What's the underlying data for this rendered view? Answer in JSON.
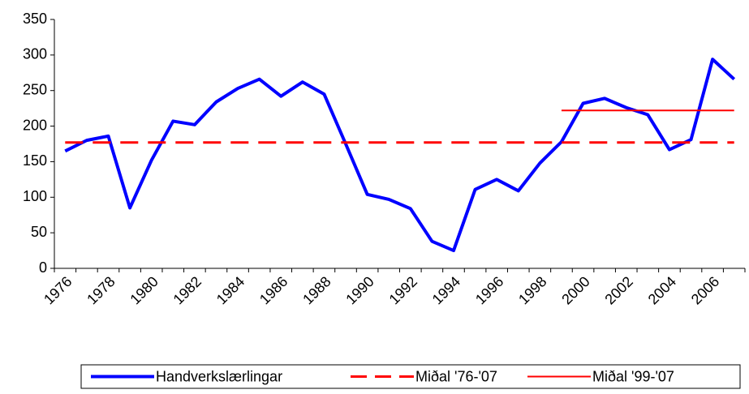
{
  "chart_data": {
    "type": "line",
    "categories": [
      "1976",
      null,
      "1978",
      null,
      "1980",
      null,
      "1982",
      null,
      "1984",
      null,
      "1986",
      null,
      "1988",
      null,
      "1990",
      null,
      "1992",
      null,
      "1994",
      null,
      "1996",
      null,
      "1998",
      null,
      "2000",
      null,
      "2002",
      null,
      "2004",
      null,
      "2006",
      null
    ],
    "series": [
      {
        "name": "Handverkslærlingar",
        "color": "#0000ff",
        "dash": "solid",
        "width": 4,
        "values": [
          165,
          180,
          186,
          85,
          152,
          207,
          202,
          234,
          253,
          266,
          242,
          262,
          245,
          175,
          104,
          97,
          84,
          38,
          25,
          111,
          125,
          109,
          148,
          178,
          232,
          239,
          226,
          216,
          167,
          181,
          294,
          266
        ]
      },
      {
        "name": "Miðal '76-'07",
        "color": "#ff0000",
        "dash": "dashed",
        "width": 3,
        "values": [
          177,
          177,
          177,
          177,
          177,
          177,
          177,
          177,
          177,
          177,
          177,
          177,
          177,
          177,
          177,
          177,
          177,
          177,
          177,
          177,
          177,
          177,
          177,
          177,
          177,
          177,
          177,
          177,
          177,
          177,
          177,
          177
        ]
      },
      {
        "name": "Miðal '99-'07",
        "color": "#ff0000",
        "dash": "solid",
        "width": 2,
        "values": [
          null,
          null,
          null,
          null,
          null,
          null,
          null,
          null,
          null,
          null,
          null,
          null,
          null,
          null,
          null,
          null,
          null,
          null,
          null,
          null,
          null,
          null,
          null,
          222,
          222,
          222,
          222,
          222,
          222,
          222,
          222,
          222
        ]
      }
    ],
    "ylim": [
      0,
      350
    ],
    "yticks": [
      0,
      50,
      100,
      150,
      200,
      250,
      300,
      350
    ],
    "grid": false,
    "legend": "bottom"
  }
}
